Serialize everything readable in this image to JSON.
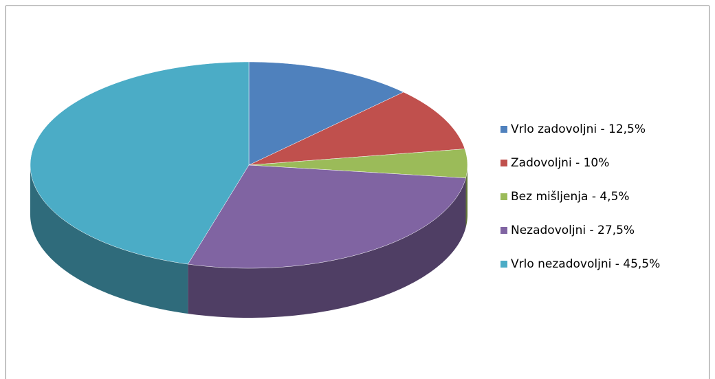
{
  "chart_data": {
    "type": "pie",
    "categories": [
      "Vrlo zadovoljni - 12,5%",
      "Zadovoljni - 10%",
      "Bez mišljenja - 4,5%",
      "Nezadovoljni - 27,5%",
      "Vrlo nezadovoljni - 45,5%"
    ],
    "values": [
      12.5,
      10,
      4.5,
      27.5,
      45.5
    ],
    "colors": [
      "#4f81bd",
      "#c0504d",
      "#9bbb59",
      "#8064a2",
      "#4bacc6"
    ],
    "legend": "right"
  }
}
